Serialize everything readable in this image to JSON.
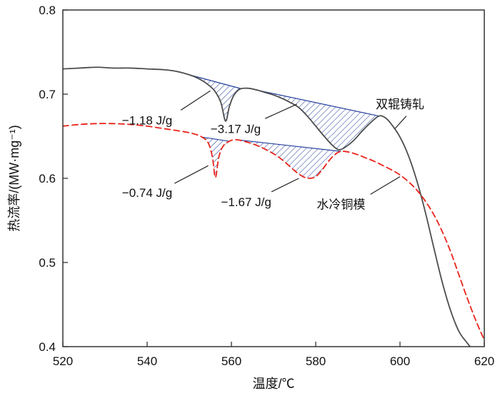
{
  "chart_data": {
    "type": "line",
    "title": "",
    "xlabel": "温度/℃",
    "ylabel": "热流率/(MW·mg⁻¹)",
    "xlim": [
      520,
      620
    ],
    "ylim": [
      0.4,
      0.8
    ],
    "xticks": [
      520,
      540,
      560,
      580,
      600,
      620
    ],
    "yticks": [
      0.4,
      0.5,
      0.6,
      0.7,
      0.8
    ],
    "grid": false,
    "legend_position": "inline-labels",
    "frame_color": "#333333",
    "series": [
      {
        "name": "双辊铸轧",
        "style": "solid",
        "color": "#4d4d4d",
        "width": 1.8,
        "points": [
          [
            520,
            0.73
          ],
          [
            524,
            0.731
          ],
          [
            528,
            0.732
          ],
          [
            532,
            0.731
          ],
          [
            536,
            0.731
          ],
          [
            540,
            0.73
          ],
          [
            544,
            0.729
          ],
          [
            547,
            0.727
          ],
          [
            550,
            0.723
          ],
          [
            552,
            0.719
          ],
          [
            554,
            0.713
          ],
          [
            556,
            0.704
          ],
          [
            557.5,
            0.69
          ],
          [
            558.6,
            0.668
          ],
          [
            559.5,
            0.685
          ],
          [
            560.5,
            0.698
          ],
          [
            562,
            0.706
          ],
          [
            564,
            0.707
          ],
          [
            566,
            0.705
          ],
          [
            568,
            0.702
          ],
          [
            570,
            0.699
          ],
          [
            572,
            0.695
          ],
          [
            574,
            0.69
          ],
          [
            576,
            0.684
          ],
          [
            578,
            0.674
          ],
          [
            580,
            0.662
          ],
          [
            582,
            0.65
          ],
          [
            584,
            0.639
          ],
          [
            585.5,
            0.634
          ],
          [
            587,
            0.637
          ],
          [
            589,
            0.645
          ],
          [
            591,
            0.656
          ],
          [
            593,
            0.666
          ],
          [
            595,
            0.674
          ],
          [
            596.5,
            0.672
          ],
          [
            598,
            0.664
          ],
          [
            600,
            0.649
          ],
          [
            602,
            0.627
          ],
          [
            604,
            0.597
          ],
          [
            606,
            0.56
          ],
          [
            608,
            0.518
          ],
          [
            610,
            0.477
          ],
          [
            612,
            0.443
          ],
          [
            614,
            0.418
          ],
          [
            616,
            0.404
          ],
          [
            618,
            0.392
          ]
        ]
      },
      {
        "name": "水冷铜模",
        "style": "dashed",
        "color": "#e8231a",
        "width": 1.8,
        "points": [
          [
            520,
            0.662
          ],
          [
            524,
            0.664
          ],
          [
            528,
            0.665
          ],
          [
            532,
            0.665
          ],
          [
            536,
            0.664
          ],
          [
            540,
            0.662
          ],
          [
            544,
            0.659
          ],
          [
            548,
            0.656
          ],
          [
            551,
            0.653
          ],
          [
            553,
            0.649
          ],
          [
            554.5,
            0.642
          ],
          [
            555.5,
            0.625
          ],
          [
            556.2,
            0.601
          ],
          [
            557,
            0.625
          ],
          [
            558,
            0.638
          ],
          [
            559.5,
            0.644
          ],
          [
            561,
            0.646
          ],
          [
            563,
            0.644
          ],
          [
            565,
            0.641
          ],
          [
            567,
            0.637
          ],
          [
            569,
            0.632
          ],
          [
            571,
            0.626
          ],
          [
            573,
            0.618
          ],
          [
            575,
            0.609
          ],
          [
            577,
            0.602
          ],
          [
            578.5,
            0.6
          ],
          [
            580,
            0.602
          ],
          [
            581.5,
            0.61
          ],
          [
            583,
            0.62
          ],
          [
            584.5,
            0.628
          ],
          [
            586,
            0.632
          ],
          [
            588,
            0.631
          ],
          [
            590,
            0.628
          ],
          [
            592,
            0.624
          ],
          [
            594,
            0.62
          ],
          [
            596,
            0.615
          ],
          [
            598,
            0.61
          ],
          [
            600,
            0.604
          ],
          [
            602,
            0.596
          ],
          [
            604,
            0.586
          ],
          [
            606,
            0.573
          ],
          [
            608,
            0.557
          ],
          [
            610,
            0.537
          ],
          [
            612,
            0.513
          ],
          [
            614,
            0.485
          ],
          [
            616,
            0.457
          ],
          [
            618,
            0.431
          ],
          [
            620,
            0.408
          ]
        ]
      }
    ],
    "hatch": {
      "color": "#27429e",
      "regions": [
        {
          "series": 0,
          "from": 550,
          "to": 562.5
        },
        {
          "series": 0,
          "from": 564,
          "to": 595
        },
        {
          "series": 1,
          "from": 553,
          "to": 559.5
        },
        {
          "series": 1,
          "from": 561,
          "to": 586
        }
      ]
    },
    "annotations": [
      {
        "text": "−1.18 J/g",
        "x": 540,
        "y": 0.669,
        "leader": [
          548,
          0.681,
          555,
          0.704
        ]
      },
      {
        "text": "−3.17 J/g",
        "x": 561,
        "y": 0.659,
        "leader": [
          568,
          0.671,
          575.5,
          0.688
        ]
      },
      {
        "text": "−0.74 J/g",
        "x": 540,
        "y": 0.583,
        "leader": [
          546.5,
          0.594,
          554.5,
          0.615
        ]
      },
      {
        "text": "−1.67 J/g",
        "x": 563.5,
        "y": 0.572,
        "leader": [
          569.5,
          0.584,
          576,
          0.6
        ]
      },
      {
        "text": "双辊铸轧",
        "x": 600,
        "y": 0.688,
        "leader": [
          601.5,
          0.674,
          598.8,
          0.659
        ]
      },
      {
        "text": "水冷铜模",
        "x": 586,
        "y": 0.569,
        "leader": [
          593,
          0.581,
          600,
          0.602
        ]
      }
    ]
  }
}
